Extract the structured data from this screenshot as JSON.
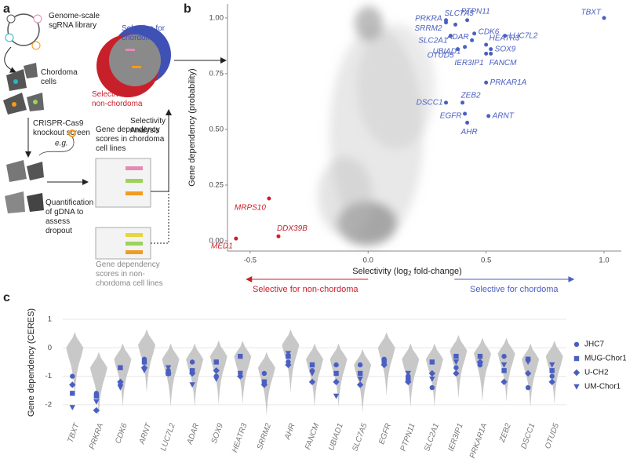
{
  "panel_labels": [
    "a",
    "b",
    "c"
  ],
  "diagram": {
    "library": [
      "Genome-scale",
      "sgRNA library"
    ],
    "cells": [
      "Chordoma",
      "cells"
    ],
    "screen": [
      "CRISPR-Cas9",
      "knockout screen"
    ],
    "example": "e.g.",
    "quantification": [
      "Quantification",
      "of gDNA to",
      "assess",
      "dropout"
    ],
    "chordoma_scores": [
      "Gene dependency",
      "scores in chordoma",
      "cell lines"
    ],
    "non_chordoma_scores": [
      "Gene dependency",
      "scores in non-",
      "chordoma cell lines"
    ],
    "analysis": [
      "Selectivity",
      "Analysis"
    ],
    "selective_chordoma": [
      "Selective for",
      "chordoma"
    ],
    "selective_non_chordoma": [
      "Selective for",
      "non-chordoma"
    ]
  },
  "chart_data": [
    {
      "type": "scatter",
      "y_label": "Gene dependency (probability)",
      "x_label_parts": [
        "Selectivity (log",
        "2",
        " fold-change)"
      ],
      "xlim": [
        -0.596,
        1.073
      ],
      "ylim": [
        -0.046,
        1.063
      ],
      "xticks": [
        {
          "value": -0.5,
          "label": "-0.5"
        },
        {
          "value": 0,
          "label": "0.0"
        },
        {
          "value": 0.5,
          "label": "0.5"
        },
        {
          "value": 1,
          "label": "1.0"
        }
      ],
      "yticks": [
        {
          "value": 0,
          "label": "0.00"
        },
        0.25,
        {
          "value": 0.5,
          "label": "0.50"
        },
        0.75,
        {
          "value": 1,
          "label": "1.00"
        }
      ],
      "labels": [
        "TBXT",
        "PRKRA",
        "SRRM2",
        "SLC7A5",
        "PTPN11",
        "CDK6",
        "ADAR",
        "HEATR3",
        "SLC2A1",
        "LUC7L2",
        "UBIAD1",
        "SOX9",
        "OTUD5",
        "FANCM",
        "IER3IP1",
        "PRKAR1A",
        "DSCC1",
        "ZEB2",
        "EGFR",
        "ARNT",
        "AHR",
        "MRPS10",
        "DDX39B",
        "MED1"
      ],
      "x": [
        1.0,
        0.33,
        0.33,
        0.37,
        0.42,
        0.45,
        0.44,
        0.5,
        0.35,
        0.58,
        0.41,
        0.52,
        0.38,
        0.52,
        0.5,
        0.5,
        0.33,
        0.4,
        0.41,
        0.51,
        0.42,
        -0.42,
        -0.38,
        -0.56
      ],
      "y": [
        1.0,
        0.99,
        0.98,
        0.97,
        0.99,
        0.93,
        0.9,
        0.88,
        0.92,
        0.92,
        0.87,
        0.86,
        0.86,
        0.84,
        0.84,
        0.71,
        0.62,
        0.62,
        0.57,
        0.56,
        0.53,
        0.19,
        0.02,
        0.01
      ],
      "colors": [
        "#4a5fc1",
        "#4a5fc1",
        "#4a5fc1",
        "#4a5fc1",
        "#4a5fc1",
        "#4a5fc1",
        "#4a5fc1",
        "#4a5fc1",
        "#4a5fc1",
        "#4a5fc1",
        "#4a5fc1",
        "#4a5fc1",
        "#4a5fc1",
        "#4a5fc1",
        "#4a5fc1",
        "#4a5fc1",
        "#4a5fc1",
        "#4a5fc1",
        "#4a5fc1",
        "#4a5fc1",
        "#4a5fc1",
        "#c8202a",
        "#c8202a",
        "#c8202a"
      ],
      "direction_labels": [
        "Selective for non-chordoma",
        "Selective for chordoma"
      ],
      "direction_colors": [
        "#c8202a",
        "#4a5fc1"
      ]
    },
    {
      "type": "violin",
      "y_label": "Gene dependency (CERES)",
      "categories": [
        "TBXT",
        "PRKRA",
        "CDK6",
        "ARNT",
        "LUC7L2",
        "ADAR",
        "SOX9",
        "HEATR3",
        "SRRM2",
        "AHR",
        "FANCM",
        "UBIAD1",
        "SLC7A5",
        "EGFR",
        "PTPN11",
        "SLC2A1",
        "IER3IP1",
        "PRKAR1A",
        "ZEB2",
        "DSCC1",
        "OTUD5"
      ],
      "ylim": [
        -2.39,
        1.36
      ],
      "yticks": [
        1,
        0,
        -1,
        -2
      ],
      "violin_centers": [
        0,
        -0.7,
        -0.4,
        0.1,
        -0.4,
        -0.4,
        -0.3,
        -0.3,
        -0.7,
        0.1,
        -0.4,
        -0.4,
        -0.6,
        0,
        -0.4,
        -0.4,
        -0.1,
        -0.2,
        -0.2,
        -0.4,
        -0.3
      ],
      "violin_color": "#c8c8c8",
      "series": [
        {
          "name": "JHC7",
          "marker": "circle",
          "color": "#4a5fc1",
          "values": [
            -1.0,
            -1.6,
            -1.3,
            -0.4,
            -0.8,
            -0.5,
            -1.0,
            -0.9,
            -0.9,
            -0.5,
            -0.8,
            -0.6,
            -0.6,
            -0.4,
            -1.0,
            -1.4,
            -0.7,
            -0.6,
            -0.3,
            -1.4,
            -1.0
          ]
        },
        {
          "name": "MUG-Chor1",
          "marker": "square",
          "color": "#4a5fc1",
          "values": [
            -1.6,
            -1.7,
            -0.7,
            -0.5,
            -0.9,
            -0.8,
            -0.5,
            -0.3,
            -1.2,
            -0.3,
            -0.6,
            -0.9,
            -0.9,
            -0.5,
            -1.1,
            -0.5,
            -0.3,
            -0.3,
            -0.8,
            -0.4,
            -0.8
          ]
        },
        {
          "name": "U-CH2",
          "marker": "diamond",
          "color": "#4a5fc1",
          "values": [
            -1.3,
            -2.2,
            -1.2,
            -0.7,
            -0.9,
            -0.9,
            -0.8,
            -1.0,
            -1.3,
            -0.6,
            -1.2,
            -1.2,
            -1.3,
            -0.6,
            -1.2,
            -0.9,
            -0.9,
            -0.5,
            -1.2,
            -0.9,
            -1.2
          ]
        },
        {
          "name": "UM-Chor1",
          "marker": "triangle",
          "color": "#4a5fc1",
          "values": [
            -2.1,
            -1.9,
            -1.4,
            -0.8,
            -0.7,
            -1.3,
            -1.1,
            -0.9,
            -1.2,
            -0.2,
            -0.9,
            -1.7,
            -1.1,
            -0.5,
            -0.9,
            -1.1,
            -0.5,
            -0.6,
            -0.6,
            -0.5,
            -0.6
          ]
        }
      ]
    }
  ]
}
